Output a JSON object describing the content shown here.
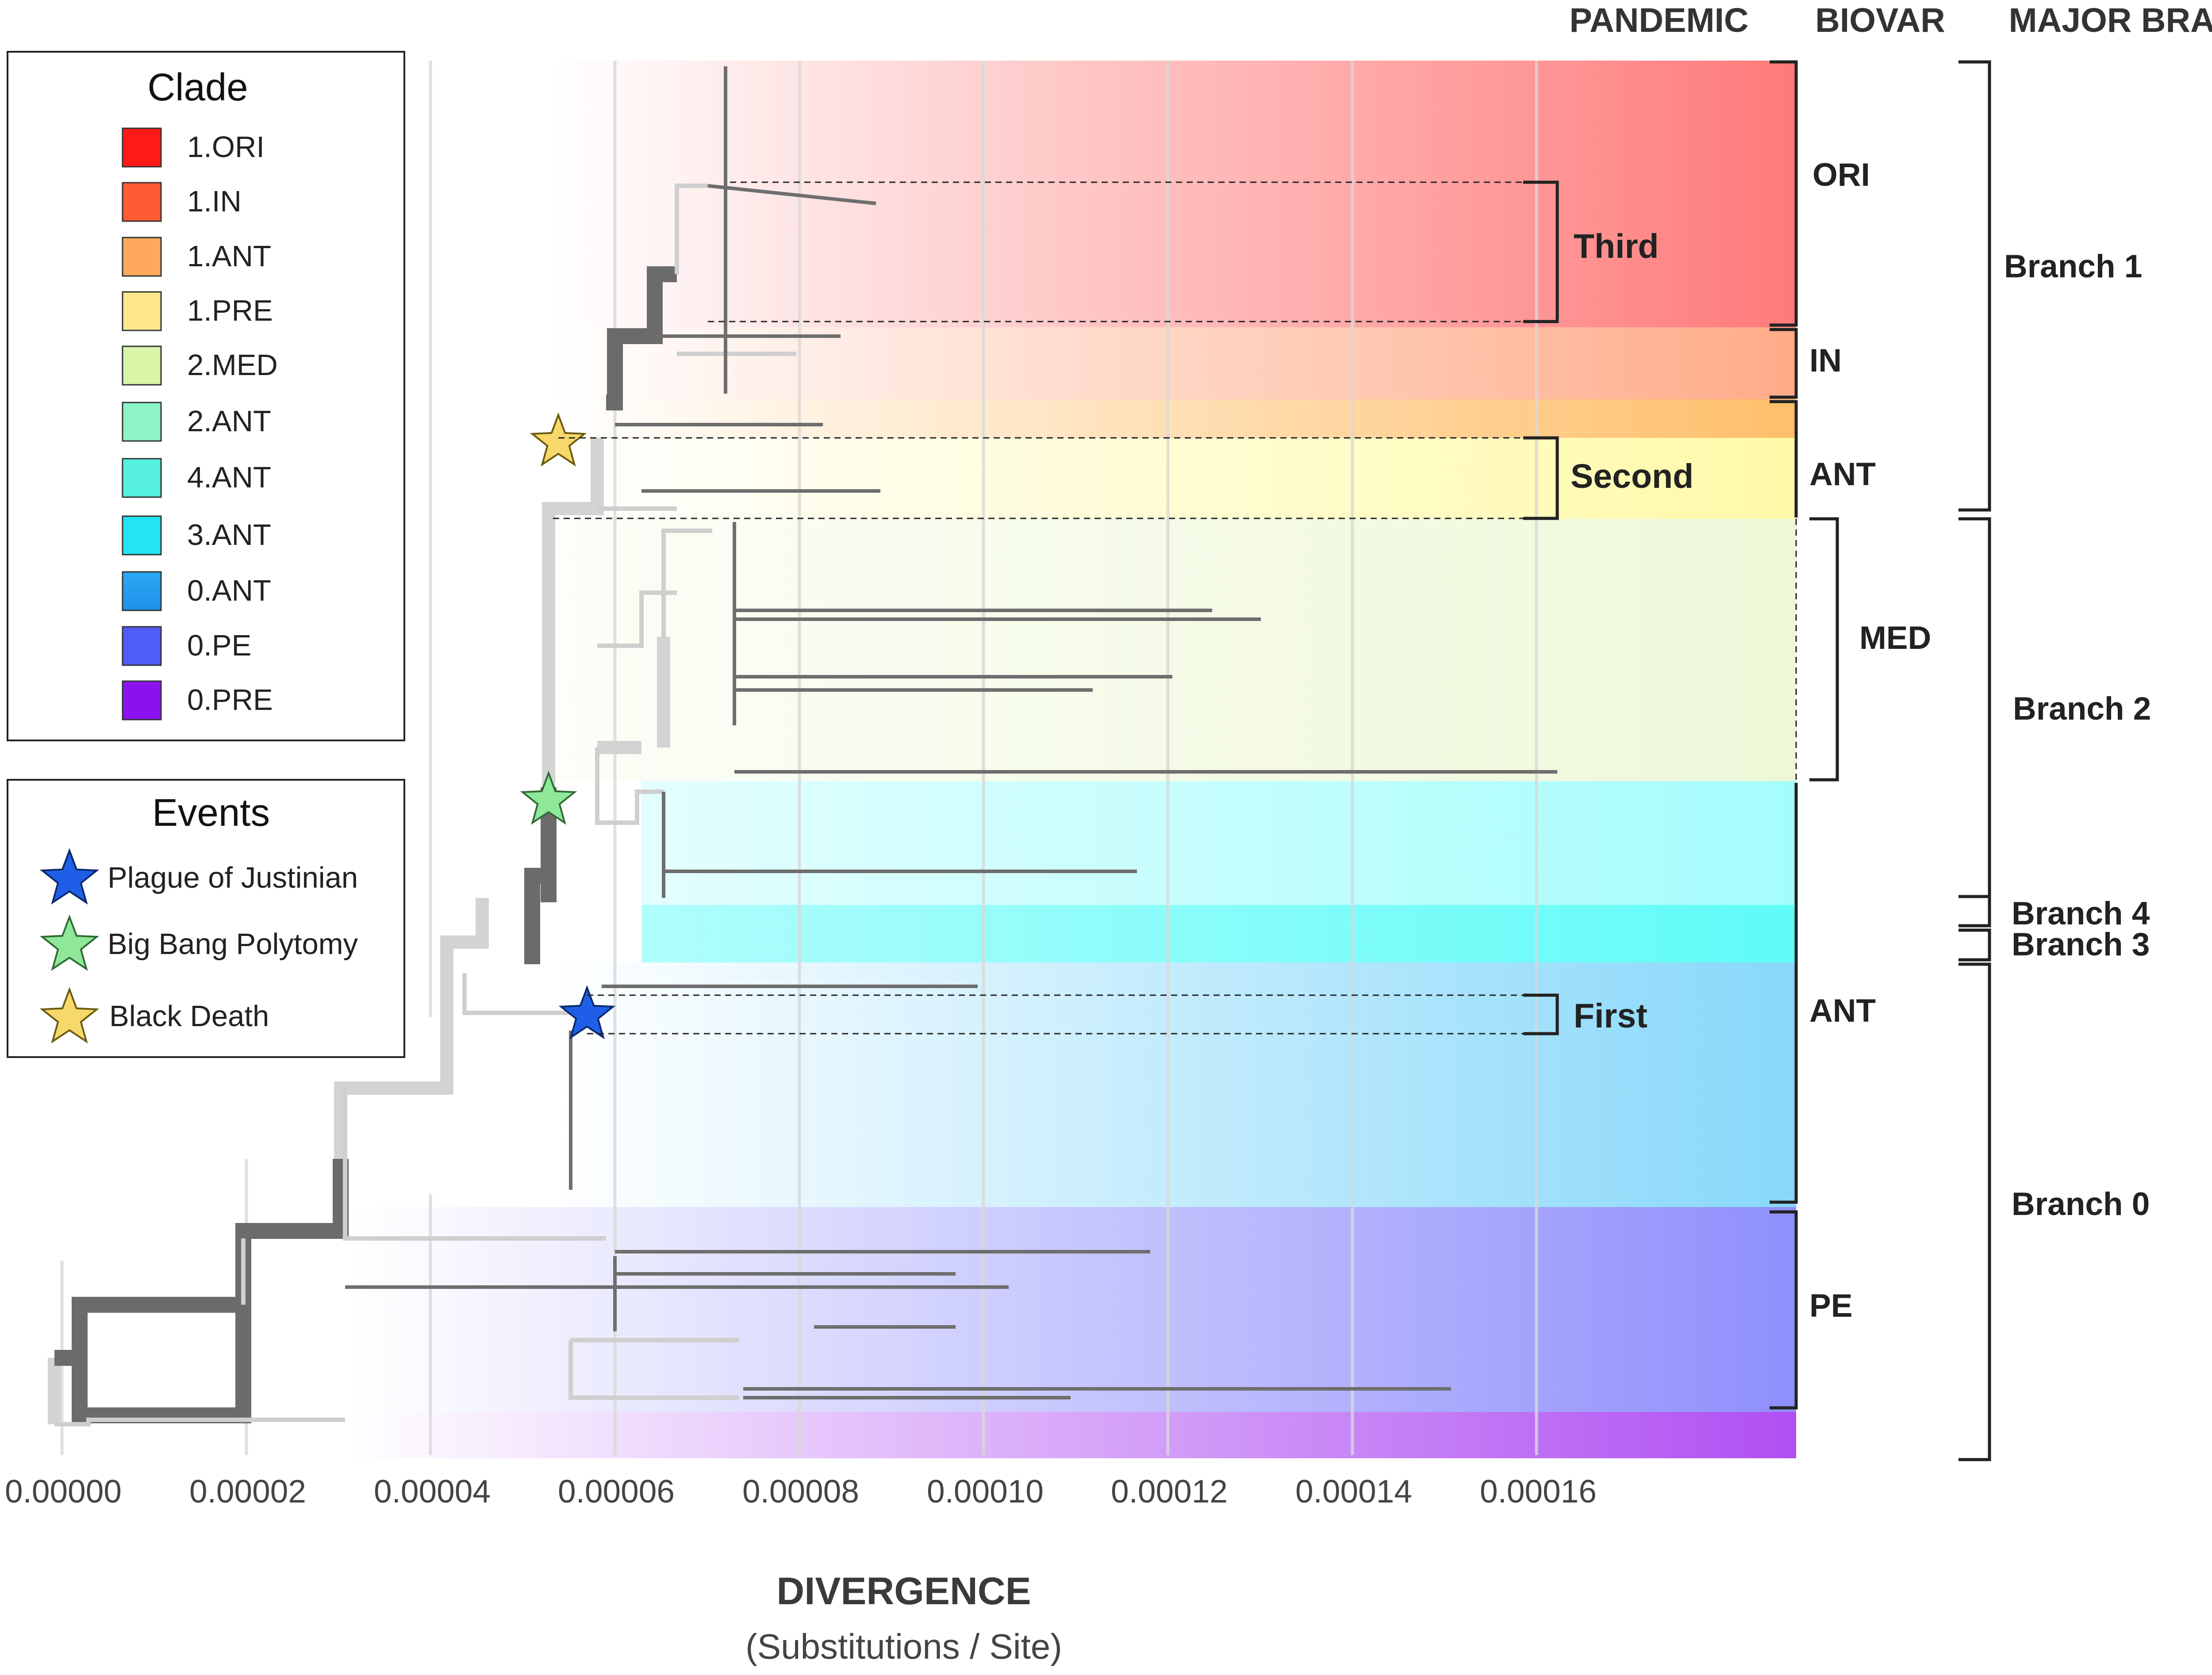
{
  "headers": {
    "pandemic": "PANDEMIC",
    "biovar": "BIOVAR",
    "major_branch": "MAJOR BRANCH"
  },
  "legend": {
    "title": "Clade",
    "items": [
      {
        "label": "1.ORI",
        "color": "#ff1a1a"
      },
      {
        "label": "1.IN",
        "color": "#ff5a33"
      },
      {
        "label": "1.ANT",
        "color": "#ffa95c"
      },
      {
        "label": "1.PRE",
        "color": "#ffe88a"
      },
      {
        "label": "2.MED",
        "color": "#d8f5a8"
      },
      {
        "label": "2.ANT",
        "color": "#8ef5c8"
      },
      {
        "label": "4.ANT",
        "color": "#55f0e0"
      },
      {
        "label": "3.ANT",
        "color": "#22e4f4"
      },
      {
        "label": "0.ANT",
        "color": "#25a2f0"
      },
      {
        "label": "0.PE",
        "color": "#4f5cf5"
      },
      {
        "label": "0.PRE",
        "color": "#8a12f0"
      }
    ]
  },
  "events": {
    "title": "Events",
    "items": [
      {
        "label": "Plague of Justinian",
        "icon": "blue-star-icon",
        "color": "#1f5fe8"
      },
      {
        "label": "Big Bang Polytomy",
        "icon": "green-star-icon",
        "color": "#8fe89a"
      },
      {
        "label": "Black Death",
        "icon": "yellow-star-icon",
        "color": "#f7d86a"
      }
    ]
  },
  "axis": {
    "title": "DIVERGENCE",
    "subtitle": "(Substitutions / Site)",
    "ticks": [
      "0.00000",
      "0.00002",
      "0.00004",
      "0.00006",
      "0.00008",
      "0.00010",
      "0.00012",
      "0.00014",
      "0.00016"
    ]
  },
  "biovars": [
    {
      "label": "ORI"
    },
    {
      "label": "IN"
    },
    {
      "label": "ANT"
    },
    {
      "label": "MED"
    },
    {
      "label": "ANT"
    },
    {
      "label": "PE"
    }
  ],
  "pandemics": [
    {
      "label": "Third"
    },
    {
      "label": "Second"
    },
    {
      "label": "First"
    }
  ],
  "major_branches": [
    {
      "label": "Branch 1"
    },
    {
      "label": "Branch 2"
    },
    {
      "label": "Branch 4"
    },
    {
      "label": "Branch 3"
    },
    {
      "label": "Branch 0"
    }
  ]
}
